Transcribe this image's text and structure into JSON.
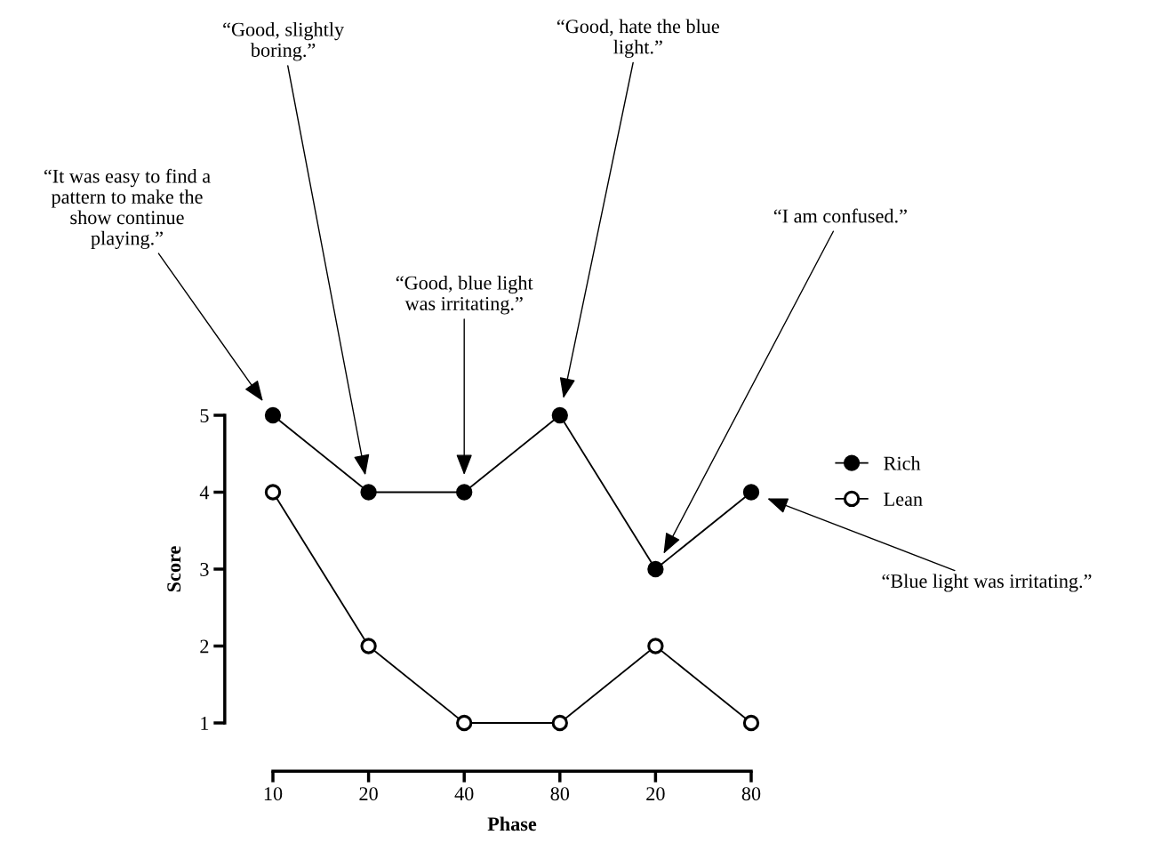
{
  "chart_data": {
    "type": "line",
    "xlabel": "Phase",
    "ylabel": "Score",
    "categories": [
      "10",
      "20",
      "40",
      "80",
      "20",
      "80"
    ],
    "series": [
      {
        "name": "Rich",
        "color": "#000000",
        "values": [
          5,
          4,
          4,
          5,
          3,
          4
        ]
      },
      {
        "name": "Lean",
        "color": "#000000",
        "values": [
          4,
          2,
          1,
          1,
          2,
          1
        ]
      }
    ],
    "ylim": [
      1,
      5
    ],
    "yticks": [
      1,
      2,
      3,
      4,
      5
    ],
    "grid": false,
    "legend": "right",
    "marker": "circle",
    "line_style": "solid",
    "annotations": [
      "“It was easy to find a\npattern to make the\nshow continue\nplaying.”",
      "“Good, slightly\nboring.”",
      "“Good, blue light\nwas irritating.”",
      "“Good, hate the blue\nlight.”",
      "“I am confused.”",
      "“Blue light was irritating.”"
    ]
  }
}
